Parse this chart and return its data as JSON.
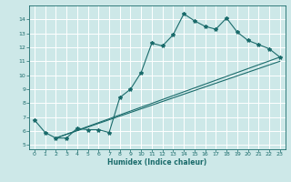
{
  "title": "",
  "xlabel": "Humidex (Indice chaleur)",
  "bg_color": "#cde8e8",
  "line_color": "#1a6b6b",
  "grid_color": "#ffffff",
  "xlim": [
    -0.5,
    23.5
  ],
  "ylim": [
    4.7,
    15.0
  ],
  "yticks": [
    5,
    6,
    7,
    8,
    9,
    10,
    11,
    12,
    13,
    14
  ],
  "xticks": [
    0,
    1,
    2,
    3,
    4,
    5,
    6,
    7,
    8,
    9,
    10,
    11,
    12,
    13,
    14,
    15,
    16,
    17,
    18,
    19,
    20,
    21,
    22,
    23
  ],
  "line1_x": [
    0,
    1,
    2,
    3,
    4,
    5,
    6,
    7,
    8,
    9,
    10,
    11,
    12,
    13,
    14,
    15,
    16,
    17,
    18,
    19,
    20,
    21,
    22,
    23
  ],
  "line1_y": [
    6.8,
    5.9,
    5.5,
    5.5,
    6.2,
    6.1,
    6.1,
    5.9,
    8.4,
    9.0,
    10.2,
    12.3,
    12.1,
    12.9,
    14.4,
    13.9,
    13.5,
    13.3,
    14.1,
    13.1,
    12.5,
    12.2,
    11.9,
    11.3
  ],
  "line2_x": [
    2,
    23
  ],
  "line2_y": [
    5.5,
    11.3
  ],
  "line3_x": [
    2,
    23
  ],
  "line3_y": [
    5.5,
    11.0
  ]
}
